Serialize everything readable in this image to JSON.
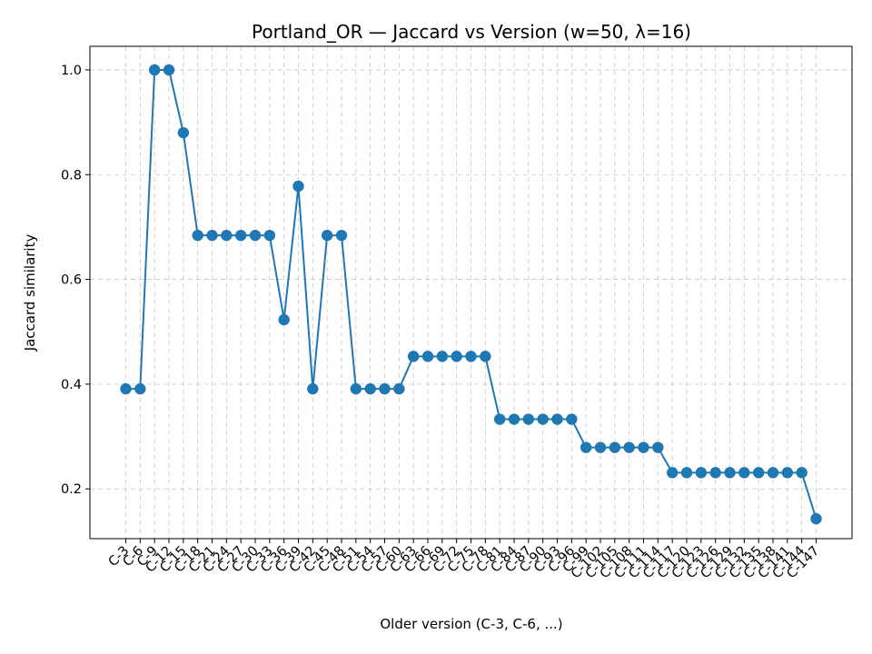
{
  "chart_data": {
    "type": "line",
    "title": "Portland_OR — Jaccard vs Version (w=50, λ=16)",
    "xlabel": "Older version (C-3, C-6, ...)",
    "ylabel": "Jaccard similarity",
    "ylim": [
      0.105,
      1.045
    ],
    "y_ticks": [
      0.2,
      0.4,
      0.6,
      0.8,
      1.0
    ],
    "y_tick_labels": [
      "0.2",
      "0.4",
      "0.6",
      "0.8",
      "1.0"
    ],
    "grid": true,
    "color": "#1f77b4",
    "categories": [
      "C-3",
      "C-6",
      "C-9",
      "C-12",
      "C-15",
      "C-18",
      "C-21",
      "C-24",
      "C-27",
      "C-30",
      "C-33",
      "C-36",
      "C-39",
      "C-42",
      "C-45",
      "C-48",
      "C-51",
      "C-54",
      "C-57",
      "C-60",
      "C-63",
      "C-66",
      "C-69",
      "C-72",
      "C-75",
      "C-78",
      "C-81",
      "C-84",
      "C-87",
      "C-90",
      "C-93",
      "C-96",
      "C-99",
      "C-102",
      "C-105",
      "C-108",
      "C-111",
      "C-114",
      "C-117",
      "C-120",
      "C-123",
      "C-126",
      "C-129",
      "C-132",
      "C-135",
      "C-138",
      "C-141",
      "C-144",
      "C-147"
    ],
    "values": [
      0.391,
      0.391,
      1.0,
      1.0,
      0.88,
      0.684,
      0.684,
      0.684,
      0.684,
      0.684,
      0.684,
      0.523,
      0.778,
      0.391,
      0.684,
      0.684,
      0.391,
      0.391,
      0.391,
      0.391,
      0.453,
      0.453,
      0.453,
      0.453,
      0.453,
      0.453,
      0.333,
      0.333,
      0.333,
      0.333,
      0.333,
      0.333,
      0.279,
      0.279,
      0.279,
      0.279,
      0.279,
      0.279,
      0.231,
      0.231,
      0.231,
      0.231,
      0.231,
      0.231,
      0.231,
      0.231,
      0.231,
      0.231,
      0.143
    ]
  }
}
